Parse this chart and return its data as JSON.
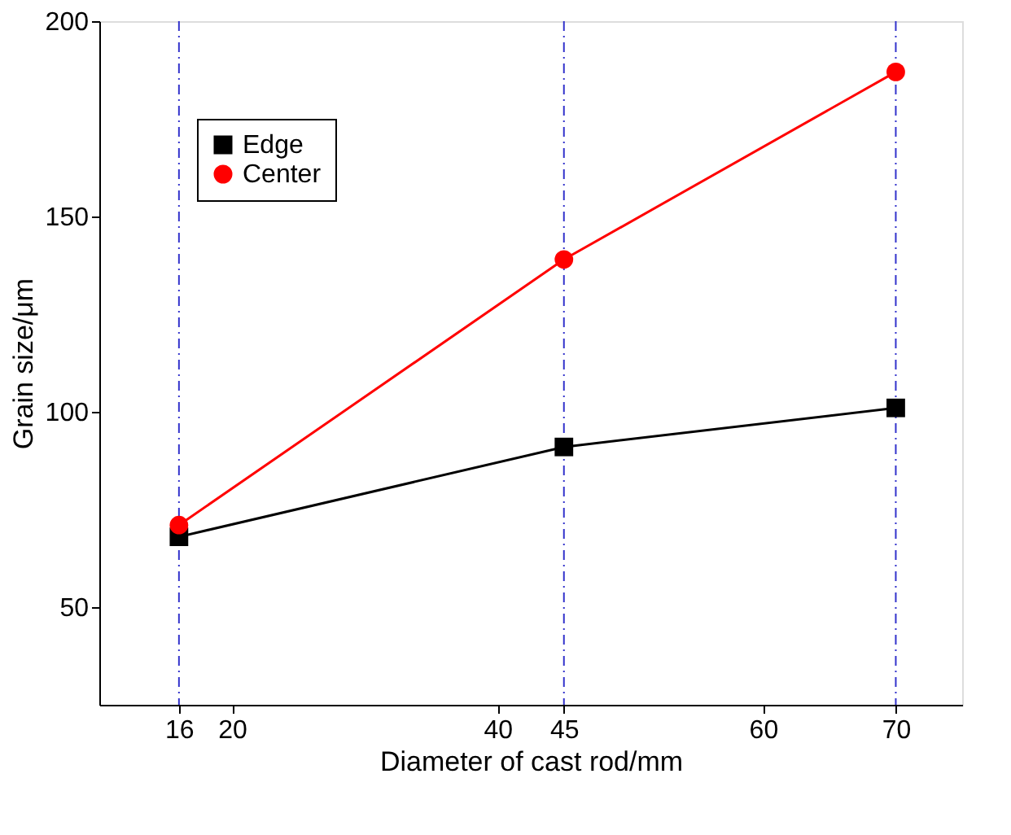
{
  "chart_data": {
    "type": "line",
    "xlabel": "Diameter of cast rod/mm",
    "ylabel": "Grain size/μm",
    "x": [
      16,
      45,
      70
    ],
    "series": [
      {
        "name": "Edge",
        "color": "#000000",
        "marker": "square",
        "values": [
          68,
          91,
          101
        ]
      },
      {
        "name": "Center",
        "color": "#ff0000",
        "marker": "circle",
        "values": [
          71,
          139,
          187
        ]
      }
    ],
    "xlim": [
      10,
      75
    ],
    "xticks": [
      16,
      20,
      40,
      45,
      60,
      70
    ],
    "ylim": [
      25,
      200
    ],
    "yticks": [
      50,
      100,
      150,
      200
    ],
    "ref_lines": [
      {
        "axis": "x",
        "value": 16,
        "color": "#3333cc",
        "line_style": "dashed"
      },
      {
        "axis": "x",
        "value": 45,
        "color": "#3333cc",
        "line_style": "dashed"
      },
      {
        "axis": "x",
        "value": 70,
        "color": "#3333cc",
        "line_style": "dashed"
      }
    ],
    "legend": "top left",
    "grid": false,
    "line_style": "solid"
  }
}
